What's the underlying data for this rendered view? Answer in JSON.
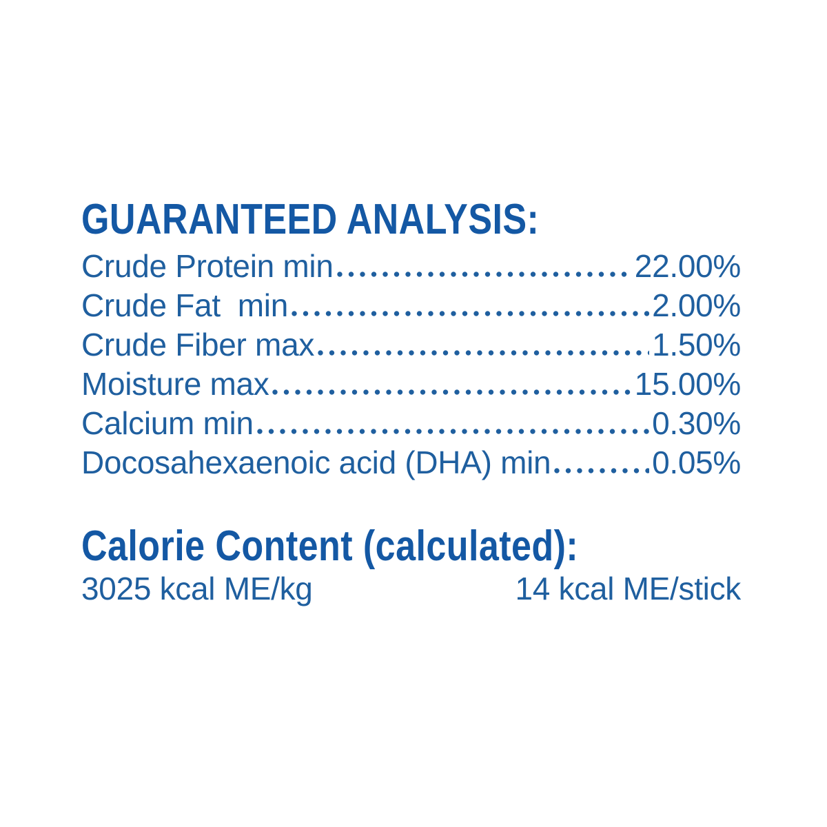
{
  "theme": {
    "heading_color": "#1458a4",
    "text_color": "#1f5f9f",
    "background_color": "#ffffff"
  },
  "guaranteed_analysis": {
    "heading": "GUARANTEED ANALYSIS:",
    "rows": [
      {
        "label": "Crude Protein min",
        "value": "22.00%"
      },
      {
        "label": "Crude Fat  min",
        "value": "2.00%"
      },
      {
        "label": "Crude Fiber max",
        "value": "1.50%"
      },
      {
        "label": "Moisture max",
        "value": "15.00%"
      },
      {
        "label": "Calcium min",
        "value": "0.30%"
      },
      {
        "label": "Docosahexaenoic acid (DHA) min",
        "value": "0.05%"
      }
    ]
  },
  "calorie_content": {
    "heading": "Calorie Content (calculated):",
    "per_kg": "3025 kcal ME/kg",
    "per_stick": "14 kcal ME/stick"
  }
}
